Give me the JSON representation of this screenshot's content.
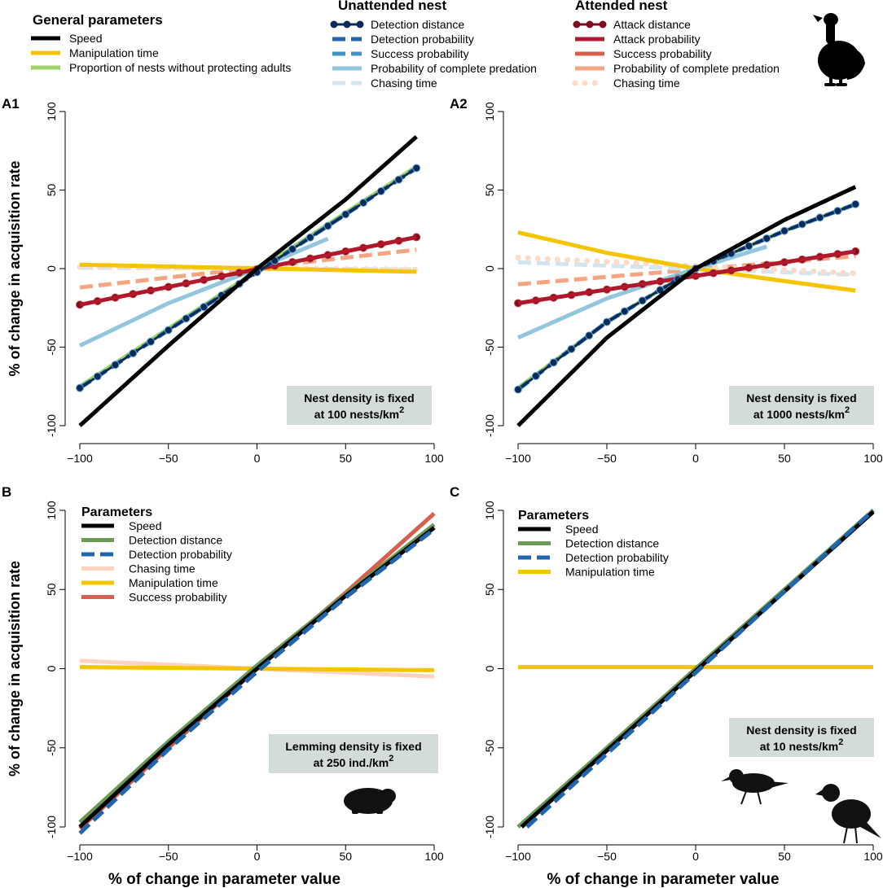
{
  "colors": {
    "speed": "#000000",
    "manipulation": "#f5c400",
    "prop_no_adult": "#9ed36a",
    "u_detdist": "#0b2a5a",
    "u_detprob": "#2166ac",
    "u_success": "#4393c3",
    "u_complete": "#92c5de",
    "u_chasing": "#d1e5f0",
    "a_attdist": "#7a0c1f",
    "a_attprob": "#b2182b",
    "a_success": "#d6604d",
    "a_complete": "#f4a582",
    "a_chasing": "#fddbc7",
    "b_detdist": "#6b9a55",
    "b_detprob": "#2166ac",
    "b_chasing": "#fdd2be",
    "b_manip": "#f5c400",
    "b_success": "#d6604d",
    "annot_bg": "#d4dbdb"
  },
  "legend_top": {
    "general": {
      "title": "General parameters",
      "items": [
        {
          "label": "Speed",
          "color": "#000000",
          "style": "solid"
        },
        {
          "label": "Manipulation time",
          "color": "#f5c400",
          "style": "solid"
        },
        {
          "label": "Proportion of nests without protecting adults",
          "color": "#9ed36a",
          "style": "solid"
        }
      ]
    },
    "unattended": {
      "title": "Unattended nest",
      "items": [
        {
          "label": "Detection distance",
          "color": "#0b2a5a",
          "style": "dotline"
        },
        {
          "label": "Detection probability",
          "color": "#2166ac",
          "style": "dashed"
        },
        {
          "label": "Success probability",
          "color": "#4393c3",
          "style": "dashed"
        },
        {
          "label": "Probability of complete predation",
          "color": "#92c5de",
          "style": "solid"
        },
        {
          "label": "Chasing time",
          "color": "#d1e5f0",
          "style": "dashed"
        }
      ]
    },
    "attended": {
      "title": "Attended nest",
      "items": [
        {
          "label": "Attack distance",
          "color": "#7a0c1f",
          "style": "dotline"
        },
        {
          "label": "Attack probability",
          "color": "#b2182b",
          "style": "solid"
        },
        {
          "label": "Success probability",
          "color": "#d6604d",
          "style": "solid"
        },
        {
          "label": "Probability of complete predation",
          "color": "#f4a582",
          "style": "solid"
        },
        {
          "label": "Chasing time",
          "color": "#fddbc7",
          "style": "dots"
        }
      ]
    }
  },
  "chart_data": [
    {
      "id": "A1",
      "type": "line",
      "panel_label": "A1",
      "xlim": [
        -100,
        100
      ],
      "ylim": [
        -100,
        100
      ],
      "xticks": [
        -100,
        -50,
        0,
        50,
        100
      ],
      "yticks": [
        -100,
        -50,
        0,
        50,
        100
      ],
      "xlabel": "",
      "ylabel": "% of change in acquisition rate",
      "annotation": {
        "line1": "Nest density is fixed",
        "line2": "at 100 nests/km",
        "sup": "2"
      },
      "series": [
        {
          "name": "Complete predation (attended)",
          "color": "#f4a582",
          "style": "dashed",
          "x": [
            -100,
            90
          ],
          "y": [
            -12,
            12
          ]
        },
        {
          "name": "Chasing time (unattended)",
          "color": "#d1e5f0",
          "style": "dashed",
          "x": [
            -100,
            90
          ],
          "y": [
            0.5,
            -0.5
          ]
        },
        {
          "name": "Chasing time (attended)",
          "color": "#fddbc7",
          "style": "dots",
          "x": [
            -100,
            90
          ],
          "y": [
            1,
            -0.5
          ]
        },
        {
          "name": "Manipulation time",
          "color": "#f5c400",
          "style": "solid",
          "x": [
            -100,
            90
          ],
          "y": [
            2.5,
            -2
          ]
        },
        {
          "name": "Probability of complete predation (unattended)",
          "color": "#92c5de",
          "style": "solid",
          "x": [
            -100,
            -50,
            0,
            40
          ],
          "y": [
            -49,
            -22,
            0,
            19
          ]
        },
        {
          "name": "Attack distance",
          "color": "#7a0c1f",
          "style": "dotline",
          "x": [
            -100,
            90
          ],
          "y": [
            -23,
            20
          ]
        },
        {
          "name": "Attack probability",
          "color": "#b2182b",
          "style": "solid",
          "x": [
            -100,
            90
          ],
          "y": [
            -23,
            20
          ]
        },
        {
          "name": "Proportion of nests without protecting adults",
          "color": "#9ed36a",
          "style": "solid",
          "x": [
            -100,
            90
          ],
          "y": [
            -75,
            65
          ]
        },
        {
          "name": "Detection probability",
          "color": "#2166ac",
          "style": "dashed",
          "x": [
            -100,
            90
          ],
          "y": [
            -76,
            64
          ]
        },
        {
          "name": "Detection distance",
          "color": "#0b2a5a",
          "style": "dotline",
          "x": [
            -100,
            90
          ],
          "y": [
            -76,
            64
          ]
        },
        {
          "name": "Speed",
          "color": "#000000",
          "style": "solid",
          "x": [
            -100,
            -50,
            0,
            50,
            90
          ],
          "y": [
            -100,
            -49,
            0,
            44,
            84
          ]
        }
      ]
    },
    {
      "id": "A2",
      "type": "line",
      "panel_label": "A2",
      "xlim": [
        -100,
        100
      ],
      "ylim": [
        -100,
        100
      ],
      "xticks": [
        -100,
        -50,
        0,
        50,
        100
      ],
      "yticks": [
        -100,
        -50,
        0,
        50,
        100
      ],
      "xlabel": "",
      "ylabel": "",
      "annotation": {
        "line1": "Nest density is fixed",
        "line2": "at 1000 nests/km",
        "sup": "2"
      },
      "series": [
        {
          "name": "Complete predation (attended)",
          "color": "#f4a582",
          "style": "dashed",
          "x": [
            -100,
            90
          ],
          "y": [
            -10,
            8
          ]
        },
        {
          "name": "Chasing time (unattended)",
          "color": "#d1e5f0",
          "style": "dashed",
          "x": [
            -100,
            90
          ],
          "y": [
            4,
            -4
          ]
        },
        {
          "name": "Chasing time (attended)",
          "color": "#fddbc7",
          "style": "dots",
          "x": [
            -100,
            90
          ],
          "y": [
            7,
            -3
          ]
        },
        {
          "name": "Manipulation time",
          "color": "#f5c400",
          "style": "solid",
          "x": [
            -100,
            -50,
            0,
            50,
            90
          ],
          "y": [
            23,
            10,
            0,
            -8,
            -14
          ]
        },
        {
          "name": "Probability of complete predation (unattended)",
          "color": "#92c5de",
          "style": "solid",
          "x": [
            -100,
            -50,
            0,
            40
          ],
          "y": [
            -44,
            -19,
            0,
            14
          ]
        },
        {
          "name": "Attack distance",
          "color": "#7a0c1f",
          "style": "dotline",
          "x": [
            -100,
            90
          ],
          "y": [
            -22,
            11
          ]
        },
        {
          "name": "Attack probability",
          "color": "#b2182b",
          "style": "solid",
          "x": [
            -100,
            90
          ],
          "y": [
            -22,
            11
          ]
        },
        {
          "name": "Proportion of nests without protecting adults",
          "color": "#9ed36a",
          "style": "solid",
          "x": [
            -100,
            -50,
            0,
            50,
            90
          ],
          "y": [
            -76,
            -34,
            0,
            24,
            41
          ]
        },
        {
          "name": "Detection probability",
          "color": "#2166ac",
          "style": "dashed",
          "x": [
            -100,
            -50,
            0,
            50,
            90
          ],
          "y": [
            -77,
            -34,
            0,
            24,
            41
          ]
        },
        {
          "name": "Detection distance",
          "color": "#0b2a5a",
          "style": "dotline",
          "x": [
            -100,
            -50,
            0,
            50,
            90
          ],
          "y": [
            -77,
            -34,
            0,
            24,
            41
          ]
        },
        {
          "name": "Speed",
          "color": "#000000",
          "style": "solid",
          "x": [
            -100,
            -50,
            0,
            50,
            90
          ],
          "y": [
            -100,
            -44,
            0,
            31,
            52
          ]
        }
      ]
    },
    {
      "id": "B",
      "type": "line",
      "panel_label": "B",
      "xlim": [
        -100,
        100
      ],
      "ylim": [
        -100,
        100
      ],
      "xticks": [
        -100,
        -50,
        0,
        50,
        100
      ],
      "yticks": [
        -100,
        -50,
        0,
        50,
        100
      ],
      "xlabel": "% of change in parameter value",
      "ylabel": "% of change in acquisition rate",
      "annotation": {
        "line1": "Lemming density is fixed",
        "line2": "at 250 ind./km",
        "sup": "2"
      },
      "legend": {
        "title": "Parameters",
        "items": [
          {
            "label": "Speed",
            "color": "#000000",
            "style": "solid"
          },
          {
            "label": "Detection distance",
            "color": "#6b9a55",
            "style": "solid"
          },
          {
            "label": "Detection probability",
            "color": "#2166ac",
            "style": "dashed"
          },
          {
            "label": "Chasing time",
            "color": "#fdd2be",
            "style": "solid"
          },
          {
            "label": "Manipulation time",
            "color": "#f5c400",
            "style": "solid"
          },
          {
            "label": "Success probability",
            "color": "#d6604d",
            "style": "solid"
          }
        ]
      },
      "series": [
        {
          "name": "Chasing time",
          "color": "#fdd2be",
          "style": "solid",
          "x": [
            -100,
            100
          ],
          "y": [
            5,
            -5
          ]
        },
        {
          "name": "Manipulation time",
          "color": "#f5c400",
          "style": "solid",
          "x": [
            -100,
            100
          ],
          "y": [
            1,
            -1
          ]
        },
        {
          "name": "Success probability",
          "color": "#d6604d",
          "style": "solid",
          "x": [
            -100,
            -50,
            0,
            50,
            100
          ],
          "y": [
            -101,
            -50,
            0,
            48,
            98
          ]
        },
        {
          "name": "Detection distance",
          "color": "#6b9a55",
          "style": "solid",
          "x": [
            -100,
            -50,
            0,
            50,
            100
          ],
          "y": [
            -97,
            -46,
            2,
            47,
            91
          ]
        },
        {
          "name": "Speed",
          "color": "#000000",
          "style": "solid",
          "x": [
            -100,
            -50,
            0,
            50,
            100
          ],
          "y": [
            -100,
            -48,
            0,
            46,
            89
          ]
        },
        {
          "name": "Detection probability",
          "color": "#2166ac",
          "style": "dashed",
          "x": [
            -100,
            -50,
            0,
            50,
            100
          ],
          "y": [
            -104,
            -51,
            -2,
            45,
            88
          ]
        }
      ]
    },
    {
      "id": "C",
      "type": "line",
      "panel_label": "C",
      "xlim": [
        -100,
        100
      ],
      "ylim": [
        -100,
        100
      ],
      "xticks": [
        -100,
        -50,
        0,
        50,
        100
      ],
      "yticks": [
        -100,
        -50,
        0,
        50,
        100
      ],
      "xlabel": "% of change in parameter value",
      "ylabel": "",
      "annotation": {
        "line1": "Nest density is fixed",
        "line2": "at 10 nests/km",
        "sup": "2"
      },
      "legend": {
        "title": "Parameters",
        "items": [
          {
            "label": "Speed",
            "color": "#000000",
            "style": "solid"
          },
          {
            "label": "Detection distance",
            "color": "#6b9a55",
            "style": "solid"
          },
          {
            "label": "Detection probability",
            "color": "#2166ac",
            "style": "dashed"
          },
          {
            "label": "Manipulation time",
            "color": "#f5c400",
            "style": "solid"
          }
        ]
      },
      "series": [
        {
          "name": "Manipulation time",
          "color": "#f5c400",
          "style": "solid",
          "x": [
            -100,
            100
          ],
          "y": [
            1,
            1
          ]
        },
        {
          "name": "Detection distance",
          "color": "#6b9a55",
          "style": "solid",
          "x": [
            -100,
            100
          ],
          "y": [
            -100,
            100
          ]
        },
        {
          "name": "Speed",
          "color": "#000000",
          "style": "solid",
          "x": [
            -98,
            100
          ],
          "y": [
            -100,
            99
          ]
        },
        {
          "name": "Detection probability",
          "color": "#2166ac",
          "style": "dashed",
          "x": [
            -95,
            100
          ],
          "y": [
            -100,
            100
          ]
        }
      ]
    }
  ]
}
